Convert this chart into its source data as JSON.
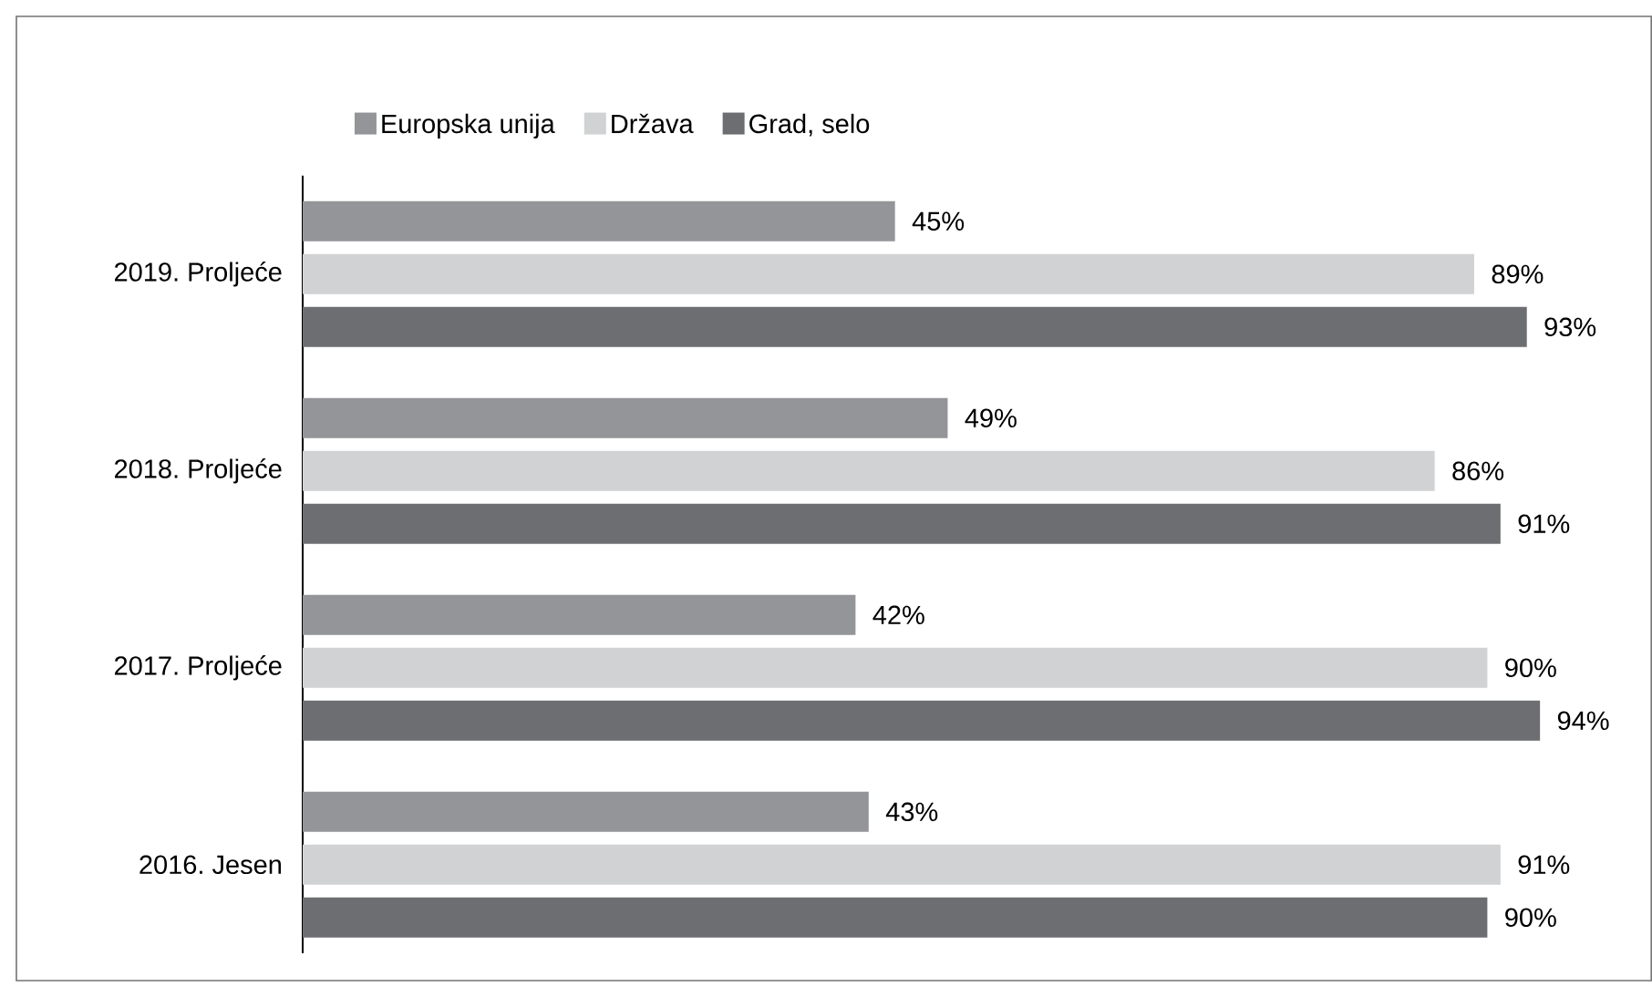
{
  "chart_data": {
    "type": "bar",
    "orientation": "horizontal",
    "categories": [
      "2019. Proljeće",
      "2018. Proljeće",
      "2017. Proljeće",
      "2016. Jesen"
    ],
    "series": [
      {
        "name": "Europska unija",
        "color": "#939598",
        "values": [
          45,
          49,
          42,
          43
        ],
        "value_labels": [
          "45%",
          "49%",
          "42%",
          "43%"
        ]
      },
      {
        "name": "Država",
        "color": "#d1d2d4",
        "values": [
          89,
          86,
          90,
          91
        ],
        "value_labels": [
          "89%",
          "86%",
          "90%",
          "91%"
        ]
      },
      {
        "name": "Grad, selo",
        "color": "#6d6e71",
        "values": [
          93,
          91,
          94,
          90
        ],
        "value_labels": [
          "93%",
          "91%",
          "94%",
          "90%"
        ]
      }
    ],
    "legend": "top",
    "tick_labels": "y"
  }
}
